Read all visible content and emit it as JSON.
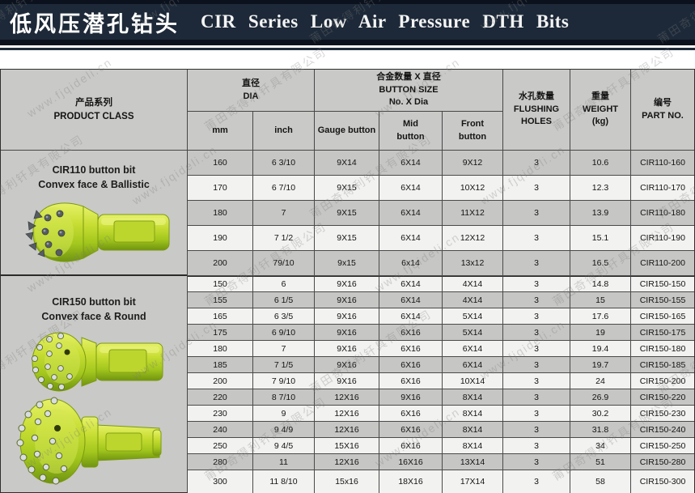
{
  "header": {
    "title_cn": "低风压潜孔钻头",
    "title_en": "CIR  Series  Low Air Pressure DTH  Bits"
  },
  "watermark": {
    "company": "莆田奇得利钎具有限公司",
    "url": "www.fjqideli.cn"
  },
  "colors": {
    "topbar_bg": "#0c121d",
    "topbar_band": "#1d2938",
    "row_dark": "#c6c6c4",
    "row_light": "#f2f2f0",
    "table_gray": "#c9c9c7",
    "bit_green": "#b8d32a"
  },
  "table": {
    "columns": {
      "product_class": "产品系列\nPRODUCT CLASS",
      "dia": "直径\nDIA",
      "button_size": "合金数量 X 直径\nBUTTON SIZE\nNo. X Dia",
      "mm": "mm",
      "inch": "inch",
      "gauge": "Gauge button",
      "mid": "Mid\nbutton",
      "front": "Front\nbutton",
      "flushing": "水孔数量\nFLUSHING\nHOLES",
      "weight": "重量\nWEIGHT\n(kg)",
      "part_no": "编号\nPART NO."
    },
    "sections": [
      {
        "name": "CIR110 button bit",
        "subtitle": "Convex face & Ballistic",
        "rows": [
          [
            "160",
            "6 3/10",
            "9X14",
            "6X14",
            "9X12",
            "3",
            "10.6",
            "CIR110-160"
          ],
          [
            "170",
            "6 7/10",
            "9X15",
            "6X14",
            "10X12",
            "3",
            "12.3",
            "CIR110-170"
          ],
          [
            "180",
            "7",
            "9X15",
            "6X14",
            "11X12",
            "3",
            "13.9",
            "CIR110-180"
          ],
          [
            "190",
            "7 1/2",
            "9X15",
            "6X14",
            "12X12",
            "3",
            "15.1",
            "CIR110-190"
          ],
          [
            "200",
            "79/10",
            "9x15",
            "6x14",
            "13x12",
            "3",
            "16.5",
            "CIR110-200"
          ]
        ]
      },
      {
        "name": "CIR150 button bit",
        "subtitle": "Convex face & Round",
        "rows": [
          [
            "150",
            "6",
            "9X16",
            "6X14",
            "4X14",
            "3",
            "14.8",
            "CIR150-150"
          ],
          [
            "155",
            "6 1/5",
            "9X16",
            "6X14",
            "4X14",
            "3",
            "15",
            "CIR150-155"
          ],
          [
            "165",
            "6 3/5",
            "9X16",
            "6X14",
            "5X14",
            "3",
            "17.6",
            "CIR150-165"
          ],
          [
            "175",
            "6 9/10",
            "9X16",
            "6X16",
            "5X14",
            "3",
            "19",
            "CIR150-175"
          ],
          [
            "180",
            "7",
            "9X16",
            "6X16",
            "6X14",
            "3",
            "19.4",
            "CIR150-180"
          ],
          [
            "185",
            "7 1/5",
            "9X16",
            "6X16",
            "6X14",
            "3",
            "19.7",
            "CIR150-185"
          ],
          [
            "200",
            "7 9/10",
            "9X16",
            "6X16",
            "10X14",
            "3",
            "24",
            "CIR150-200"
          ],
          [
            "220",
            "8 7/10",
            "12X16",
            "9X16",
            "8X14",
            "3",
            "26.9",
            "CIR150-220"
          ],
          [
            "230",
            "9",
            "12X16",
            "6X16",
            "8X14",
            "3",
            "30.2",
            "CIR150-230"
          ],
          [
            "240",
            "9 4/9",
            "12X16",
            "6X16",
            "8X14",
            "3",
            "31.8",
            "CIR150-240"
          ],
          [
            "250",
            "9 4/5",
            "15X16",
            "6X16",
            "8X14",
            "3",
            "34",
            "CIR150-250"
          ],
          [
            "280",
            "11",
            "12X16",
            "16X16",
            "13X14",
            "3",
            "51",
            "CIR150-280"
          ],
          [
            "300",
            "11 8/10",
            "15x16",
            "18X16",
            "17X14",
            "3",
            "58",
            "CIR150-300"
          ]
        ]
      }
    ]
  }
}
